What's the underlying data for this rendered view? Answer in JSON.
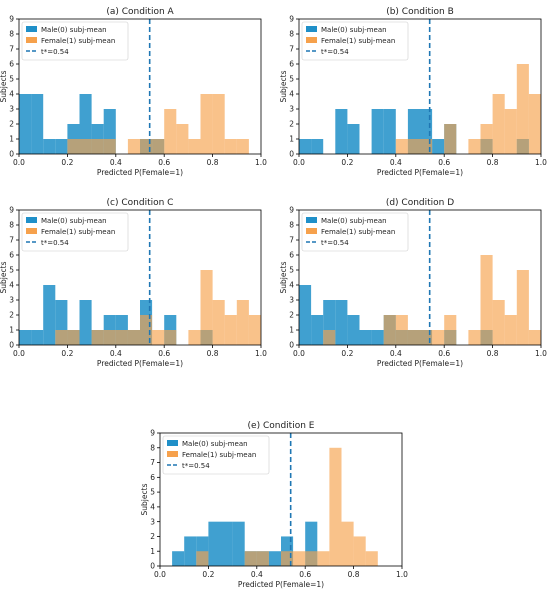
{
  "figure": {
    "legend_labels": {
      "male": "Male(0) subj-mean",
      "female": "Female(1) subj-mean",
      "threshold": "t*=0.54"
    },
    "colors": {
      "male": "#1f8fc8",
      "female": "#f6a14c",
      "threshold": "#1f77b4",
      "axis": "#000000"
    }
  },
  "chart_data": [
    {
      "type": "bar",
      "title": "(a) Condition A",
      "xlabel": "Predicted P(Female=1)",
      "ylabel": "Subjects",
      "xlim": [
        0,
        1
      ],
      "ylim": [
        0,
        9
      ],
      "xticks": [
        "0.0",
        "0.2",
        "0.4",
        "0.6",
        "0.8",
        "1.0"
      ],
      "yticks": [
        "0",
        "1",
        "2",
        "3",
        "4",
        "5",
        "6",
        "7",
        "8",
        "9"
      ],
      "threshold": 0.54,
      "legend": "top-left",
      "series": [
        {
          "name": "Male(0) subj-mean",
          "bins": [
            [
              0.0,
              0.05,
              4
            ],
            [
              0.05,
              0.1,
              4
            ],
            [
              0.1,
              0.15,
              1
            ],
            [
              0.15,
              0.2,
              1
            ],
            [
              0.2,
              0.25,
              2
            ],
            [
              0.25,
              0.3,
              4
            ],
            [
              0.3,
              0.35,
              2
            ],
            [
              0.35,
              0.4,
              3
            ],
            [
              0.5,
              0.55,
              1
            ],
            [
              0.55,
              0.6,
              1
            ]
          ]
        },
        {
          "name": "Female(1) subj-mean",
          "bins": [
            [
              0.2,
              0.25,
              1
            ],
            [
              0.25,
              0.3,
              1
            ],
            [
              0.3,
              0.35,
              1
            ],
            [
              0.35,
              0.4,
              1
            ],
            [
              0.45,
              0.5,
              1
            ],
            [
              0.5,
              0.55,
              1
            ],
            [
              0.55,
              0.6,
              1
            ],
            [
              0.6,
              0.65,
              3
            ],
            [
              0.65,
              0.7,
              2
            ],
            [
              0.7,
              0.75,
              1
            ],
            [
              0.75,
              0.8,
              4
            ],
            [
              0.8,
              0.85,
              4
            ],
            [
              0.85,
              0.9,
              1
            ],
            [
              0.9,
              0.95,
              1
            ]
          ]
        }
      ]
    },
    {
      "type": "bar",
      "title": "(b) Condition B",
      "xlabel": "Predicted P(Female=1)",
      "ylabel": "Subjects",
      "xlim": [
        0,
        1
      ],
      "ylim": [
        0,
        9
      ],
      "xticks": [
        "0.0",
        "0.2",
        "0.4",
        "0.6",
        "0.8",
        "1.0"
      ],
      "yticks": [
        "0",
        "1",
        "2",
        "3",
        "4",
        "5",
        "6",
        "7",
        "8",
        "9"
      ],
      "threshold": 0.54,
      "legend": "top-left",
      "series": [
        {
          "name": "Male(0) subj-mean",
          "bins": [
            [
              0.0,
              0.05,
              1
            ],
            [
              0.05,
              0.1,
              1
            ],
            [
              0.15,
              0.2,
              3
            ],
            [
              0.2,
              0.25,
              2
            ],
            [
              0.3,
              0.35,
              3
            ],
            [
              0.35,
              0.4,
              3
            ],
            [
              0.45,
              0.5,
              3
            ],
            [
              0.5,
              0.55,
              3
            ],
            [
              0.55,
              0.6,
              1
            ],
            [
              0.6,
              0.65,
              2
            ],
            [
              0.75,
              0.8,
              1
            ],
            [
              0.9,
              0.95,
              1
            ]
          ]
        },
        {
          "name": "Female(1) subj-mean",
          "bins": [
            [
              0.4,
              0.45,
              1
            ],
            [
              0.45,
              0.5,
              1
            ],
            [
              0.5,
              0.55,
              1
            ],
            [
              0.6,
              0.65,
              2
            ],
            [
              0.7,
              0.75,
              1
            ],
            [
              0.75,
              0.8,
              2
            ],
            [
              0.8,
              0.85,
              4
            ],
            [
              0.85,
              0.9,
              3
            ],
            [
              0.9,
              0.95,
              6
            ],
            [
              0.95,
              1.0,
              4
            ]
          ]
        }
      ]
    },
    {
      "type": "bar",
      "title": "(c) Condition C",
      "xlabel": "Predicted P(Female=1)",
      "ylabel": "Subjects",
      "xlim": [
        0,
        1
      ],
      "ylim": [
        0,
        9
      ],
      "xticks": [
        "0.0",
        "0.2",
        "0.4",
        "0.6",
        "0.8",
        "1.0"
      ],
      "yticks": [
        "0",
        "1",
        "2",
        "3",
        "4",
        "5",
        "6",
        "7",
        "8",
        "9"
      ],
      "threshold": 0.54,
      "legend": "top-left",
      "series": [
        {
          "name": "Male(0) subj-mean",
          "bins": [
            [
              0.0,
              0.05,
              1
            ],
            [
              0.05,
              0.1,
              1
            ],
            [
              0.1,
              0.15,
              4
            ],
            [
              0.15,
              0.2,
              3
            ],
            [
              0.2,
              0.25,
              1
            ],
            [
              0.25,
              0.3,
              3
            ],
            [
              0.3,
              0.35,
              1
            ],
            [
              0.35,
              0.4,
              2
            ],
            [
              0.4,
              0.45,
              2
            ],
            [
              0.45,
              0.5,
              1
            ],
            [
              0.5,
              0.55,
              3
            ],
            [
              0.6,
              0.65,
              2
            ],
            [
              0.75,
              0.8,
              1
            ]
          ]
        },
        {
          "name": "Female(1) subj-mean",
          "bins": [
            [
              0.15,
              0.2,
              1
            ],
            [
              0.2,
              0.25,
              1
            ],
            [
              0.3,
              0.35,
              1
            ],
            [
              0.35,
              0.4,
              1
            ],
            [
              0.4,
              0.45,
              1
            ],
            [
              0.45,
              0.5,
              1
            ],
            [
              0.5,
              0.55,
              2
            ],
            [
              0.55,
              0.6,
              1
            ],
            [
              0.6,
              0.65,
              1
            ],
            [
              0.7,
              0.75,
              1
            ],
            [
              0.75,
              0.8,
              5
            ],
            [
              0.8,
              0.85,
              3
            ],
            [
              0.85,
              0.9,
              2
            ],
            [
              0.9,
              0.95,
              3
            ],
            [
              0.95,
              1.0,
              2
            ]
          ]
        }
      ]
    },
    {
      "type": "bar",
      "title": "(d) Condition D",
      "xlabel": "Predicted P(Female=1)",
      "ylabel": "Subjects",
      "xlim": [
        0,
        1
      ],
      "ylim": [
        0,
        9
      ],
      "xticks": [
        "0.0",
        "0.2",
        "0.4",
        "0.6",
        "0.8",
        "1.0"
      ],
      "yticks": [
        "0",
        "1",
        "2",
        "3",
        "4",
        "5",
        "6",
        "7",
        "8",
        "9"
      ],
      "threshold": 0.54,
      "legend": "top-left",
      "series": [
        {
          "name": "Male(0) subj-mean",
          "bins": [
            [
              0.0,
              0.05,
              4
            ],
            [
              0.05,
              0.1,
              2
            ],
            [
              0.1,
              0.15,
              3
            ],
            [
              0.15,
              0.2,
              3
            ],
            [
              0.2,
              0.25,
              2
            ],
            [
              0.25,
              0.3,
              1
            ],
            [
              0.3,
              0.35,
              1
            ],
            [
              0.35,
              0.4,
              2
            ],
            [
              0.4,
              0.45,
              1
            ],
            [
              0.45,
              0.5,
              1
            ],
            [
              0.5,
              0.55,
              1
            ],
            [
              0.6,
              0.65,
              1
            ],
            [
              0.75,
              0.8,
              1
            ]
          ]
        },
        {
          "name": "Female(1) subj-mean",
          "bins": [
            [
              0.1,
              0.15,
              1
            ],
            [
              0.35,
              0.4,
              2
            ],
            [
              0.4,
              0.45,
              2
            ],
            [
              0.45,
              0.5,
              1
            ],
            [
              0.5,
              0.55,
              1
            ],
            [
              0.55,
              0.6,
              1
            ],
            [
              0.6,
              0.65,
              2
            ],
            [
              0.7,
              0.75,
              1
            ],
            [
              0.75,
              0.8,
              6
            ],
            [
              0.8,
              0.85,
              3
            ],
            [
              0.85,
              0.9,
              2
            ],
            [
              0.9,
              0.95,
              5
            ],
            [
              0.95,
              1.0,
              1
            ]
          ]
        }
      ]
    },
    {
      "type": "bar",
      "title": "(e) Condition E",
      "xlabel": "Predicted P(Female=1)",
      "ylabel": "Subjects",
      "xlim": [
        0,
        1
      ],
      "ylim": [
        0,
        9
      ],
      "xticks": [
        "0.0",
        "0.2",
        "0.4",
        "0.6",
        "0.8",
        "1.0"
      ],
      "yticks": [
        "0",
        "1",
        "2",
        "3",
        "4",
        "5",
        "6",
        "7",
        "8",
        "9"
      ],
      "threshold": 0.54,
      "legend": "top-left",
      "series": [
        {
          "name": "Male(0) subj-mean",
          "bins": [
            [
              0.05,
              0.1,
              1
            ],
            [
              0.1,
              0.15,
              2
            ],
            [
              0.15,
              0.2,
              2
            ],
            [
              0.2,
              0.25,
              3
            ],
            [
              0.25,
              0.3,
              3
            ],
            [
              0.3,
              0.35,
              3
            ],
            [
              0.35,
              0.4,
              1
            ],
            [
              0.4,
              0.45,
              1
            ],
            [
              0.45,
              0.5,
              1
            ],
            [
              0.5,
              0.55,
              2
            ],
            [
              0.6,
              0.65,
              3
            ]
          ]
        },
        {
          "name": "Female(1) subj-mean",
          "bins": [
            [
              0.15,
              0.2,
              1
            ],
            [
              0.35,
              0.4,
              1
            ],
            [
              0.4,
              0.45,
              1
            ],
            [
              0.5,
              0.55,
              1
            ],
            [
              0.55,
              0.6,
              1
            ],
            [
              0.6,
              0.65,
              1
            ],
            [
              0.65,
              0.7,
              1
            ],
            [
              0.7,
              0.75,
              8
            ],
            [
              0.75,
              0.8,
              3
            ],
            [
              0.8,
              0.85,
              2
            ],
            [
              0.85,
              0.9,
              1
            ]
          ]
        }
      ]
    }
  ]
}
